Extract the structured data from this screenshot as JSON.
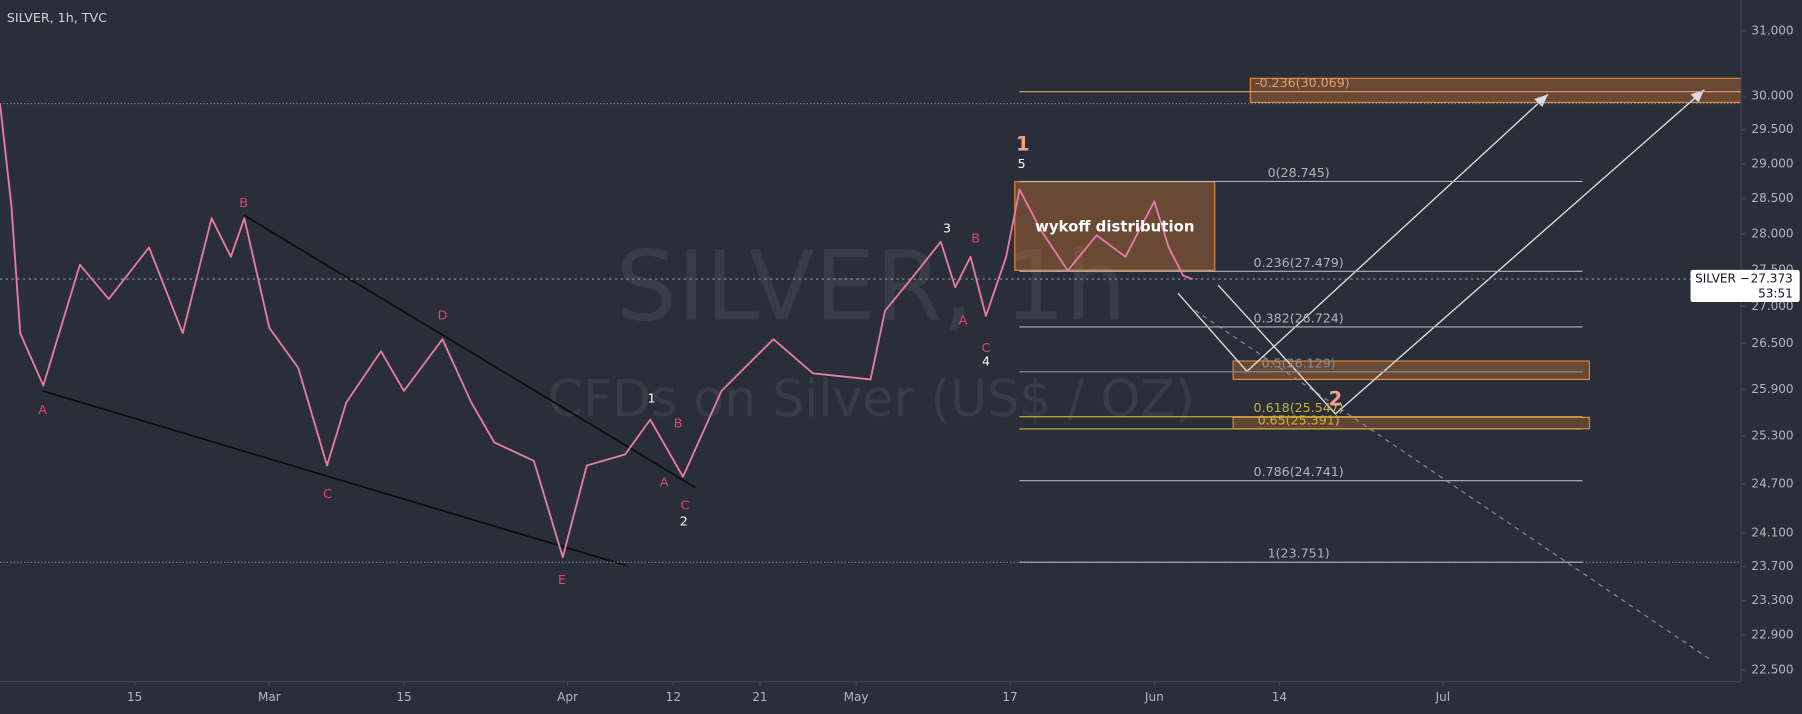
{
  "chart_data": {
    "type": "line",
    "title": "SILVER, 1h, TVC",
    "watermark": {
      "symbol": "SILVER, 1h",
      "description": "CFDs on Silver (US$ / OZ)"
    },
    "log_scale": true,
    "grid": false,
    "xlim": [
      0,
      181
    ],
    "xticks": [
      {
        "value": 14,
        "label": "15"
      },
      {
        "value": 28,
        "label": "Mar"
      },
      {
        "value": 42,
        "label": "15"
      },
      {
        "value": 59,
        "label": "Apr"
      },
      {
        "value": 70,
        "label": "12"
      },
      {
        "value": 79,
        "label": "21"
      },
      {
        "value": 89,
        "label": "May"
      },
      {
        "value": 105,
        "label": "17"
      },
      {
        "value": 120,
        "label": "Jun"
      },
      {
        "value": 133,
        "label": "14"
      },
      {
        "value": 150,
        "label": "Jul"
      }
    ],
    "ylim": [
      22.37,
      31.48
    ],
    "yticks": [
      {
        "value": 31,
        "label": "31.000"
      },
      {
        "value": 30,
        "label": "30.000"
      },
      {
        "value": 29.5,
        "label": "29.500"
      },
      {
        "value": 29,
        "label": "29.000"
      },
      {
        "value": 28.5,
        "label": "28.500"
      },
      {
        "value": 28,
        "label": "28.000"
      },
      {
        "value": 27.5,
        "label": "27.500"
      },
      {
        "value": 27,
        "label": "27.000"
      },
      {
        "value": 26.5,
        "label": "26.500"
      },
      {
        "value": 25.9,
        "label": "25.900"
      },
      {
        "value": 25.3,
        "label": "25.300"
      },
      {
        "value": 24.7,
        "label": "24.700"
      },
      {
        "value": 24.1,
        "label": "24.100"
      },
      {
        "value": 23.7,
        "label": "23.700"
      },
      {
        "value": 23.3,
        "label": "23.300"
      },
      {
        "value": 22.9,
        "label": "22.900"
      },
      {
        "value": 22.5,
        "label": "22.500"
      }
    ],
    "series": [
      {
        "name": "SILVER",
        "color": "#e57ba6",
        "x": [
          0,
          1.2,
          2.1,
          4.5,
          8.3,
          11.3,
          15.5,
          19,
          22,
          24,
          25.4,
          28,
          31,
          34,
          36,
          39.6,
          42,
          46,
          49,
          51.4,
          55.5,
          58.5,
          61,
          65,
          67.6,
          71,
          75,
          80.4,
          84.5,
          90.5,
          92,
          95,
          97.8,
          99.3,
          100.9,
          102.5,
          104.6,
          106,
          108.2,
          111,
          114,
          117,
          120,
          121.5,
          123,
          124
        ],
        "values": [
          29.89,
          28.38,
          26.64,
          25.95,
          27.57,
          27.1,
          27.81,
          26.64,
          28.22,
          27.68,
          28.22,
          26.71,
          26.18,
          24.93,
          25.73,
          26.4,
          25.88,
          26.56,
          25.73,
          25.22,
          24.99,
          23.81,
          24.93,
          25.07,
          25.51,
          24.79,
          25.88,
          26.56,
          26.11,
          26.03,
          26.94,
          27.42,
          27.89,
          27.26,
          27.68,
          26.87,
          27.68,
          28.63,
          28.05,
          27.49,
          27.98,
          27.68,
          28.46,
          27.81,
          27.42,
          27.37
        ]
      }
    ],
    "fib_levels": [
      {
        "value": 30.069,
        "label": "-0.236(30.069)",
        "color": "#e0a070"
      },
      {
        "value": 28.745,
        "label": "0(28.745)",
        "color": "#b0b3bb"
      },
      {
        "value": 27.479,
        "label": "0.236(27.479)",
        "color": "#b0b3bb"
      },
      {
        "value": 26.724,
        "label": "0.382(26.724)",
        "color": "#b0b3bb"
      },
      {
        "value": 26.129,
        "label": "0.5(26.129)",
        "color": "#8a8d95"
      },
      {
        "value": 25.547,
        "label": "0.618(25.547)",
        "color": "#c9b13a"
      },
      {
        "value": 25.391,
        "label": "0.65(25.391)",
        "color": "#c9b13a"
      },
      {
        "value": 24.741,
        "label": "0.786(24.741)",
        "color": "#b0b3bb"
      },
      {
        "value": 23.751,
        "label": "1(23.751)",
        "color": "#b0b3bb"
      }
    ],
    "reference_lines": [
      29.89,
      23.75
    ],
    "price_tag": {
      "label": "SILVER −",
      "price": 27.373,
      "countdown": "53:51"
    },
    "annotations": [
      {
        "text": "A",
        "color": "#e2407a"
      },
      {
        "text": "B",
        "color": "#e2407a"
      },
      {
        "text": "C",
        "color": "#e2407a"
      },
      {
        "text": "D",
        "color": "#e2407a"
      },
      {
        "text": "E",
        "color": "#e2407a"
      },
      {
        "text": "1",
        "color": "#ffffff"
      },
      {
        "text": "B",
        "color": "#e2407a"
      },
      {
        "text": "A",
        "color": "#e2407a"
      },
      {
        "text": "C",
        "color": "#e2407a"
      },
      {
        "text": "2",
        "color": "#ffffff"
      },
      {
        "text": "3",
        "color": "#ffffff"
      },
      {
        "text": "B",
        "color": "#e2407a"
      },
      {
        "text": "A",
        "color": "#e2407a"
      },
      {
        "text": "C",
        "color": "#e2407a"
      },
      {
        "text": "4",
        "color": "#ffffff"
      },
      {
        "text": "5",
        "color": "#ffffff"
      },
      {
        "text": "1",
        "color": "#f4a090"
      },
      {
        "text": "2",
        "color": "#f4a090"
      },
      {
        "text": "wykoff distribution",
        "color": "#ffffff"
      }
    ]
  }
}
